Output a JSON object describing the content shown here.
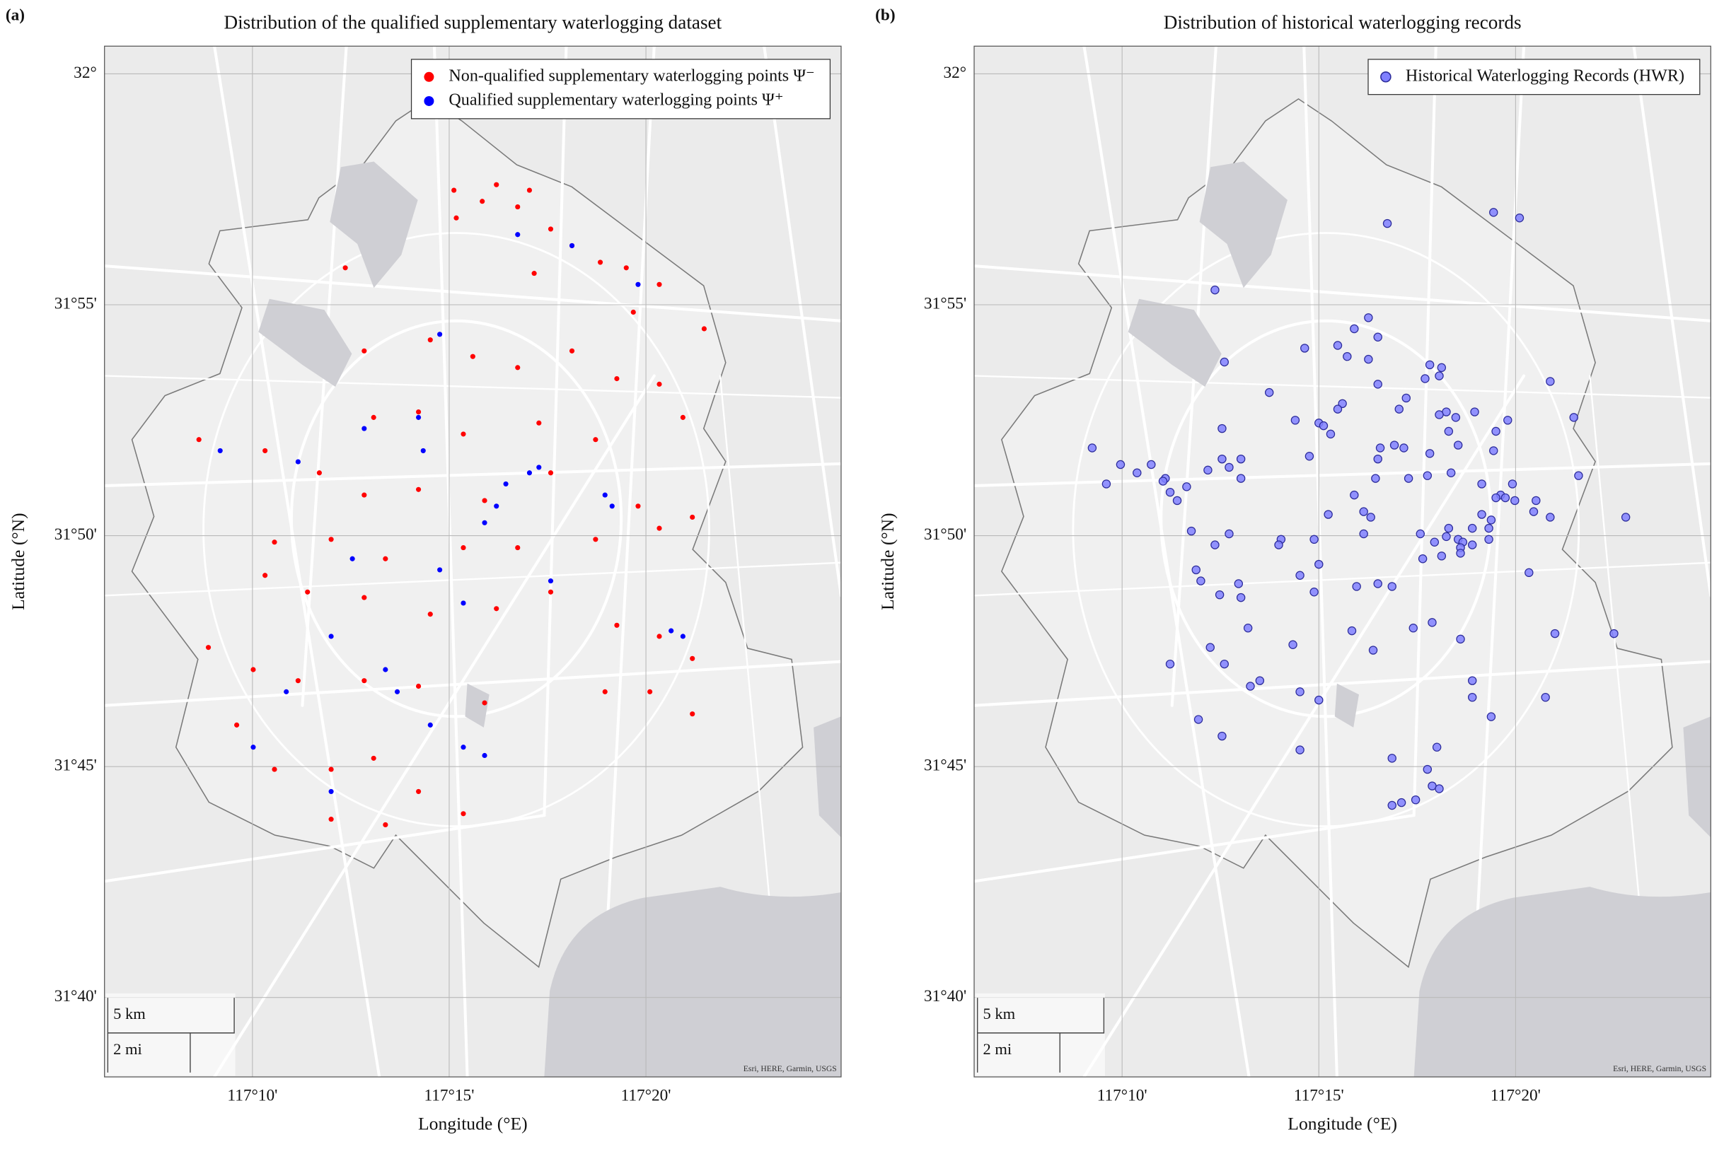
{
  "chart_data": [
    {
      "type": "scatter",
      "panel_label": "(a)",
      "title": "Distribution of the qualified supplementary waterlogging dataset",
      "xlabel": "Longitude (°E)",
      "ylabel": "Latitude (°N)",
      "xlim": [
        117.104,
        117.416
      ],
      "ylim": [
        31.638,
        32.01
      ],
      "xticks": [
        {
          "value": 117.16667,
          "label": "117°10'"
        },
        {
          "value": 117.25,
          "label": "117°15'"
        },
        {
          "value": 117.33333,
          "label": "117°20'"
        }
      ],
      "yticks": [
        {
          "value": 31.66667,
          "label": "31°40'"
        },
        {
          "value": 31.75,
          "label": "31°45'"
        },
        {
          "value": 31.83333,
          "label": "31°50'"
        },
        {
          "value": 31.91667,
          "label": "31°55'"
        },
        {
          "value": 32,
          "label": "32°"
        }
      ],
      "grid": true,
      "legend": "upper right",
      "scale_bar": [
        "5 km",
        "2 mi"
      ],
      "attribution": "Esri, HERE, Garmin, USGS",
      "series": [
        {
          "name": "Non-qualified supplementary waterlogging points Ψ⁻",
          "color": "#ff0000",
          "x": [
            117.27,
            117.252,
            117.264,
            117.279,
            117.284,
            117.253,
            117.293,
            117.302,
            117.314,
            117.325,
            117.206,
            117.286,
            117.339,
            117.328,
            117.358,
            117.214,
            117.242,
            117.26,
            117.279,
            117.302,
            117.321,
            117.339,
            117.349,
            117.218,
            117.237,
            117.256,
            117.288,
            117.312,
            117.144,
            117.172,
            117.195,
            117.214,
            117.237,
            117.265,
            117.293,
            117.33,
            117.353,
            117.176,
            117.2,
            117.223,
            117.256,
            117.279,
            117.312,
            117.339,
            117.172,
            117.19,
            117.214,
            117.242,
            117.27,
            117.293,
            117.321,
            117.339,
            117.353,
            117.148,
            117.167,
            117.186,
            117.214,
            117.237,
            117.265,
            117.316,
            117.335,
            117.353,
            117.16,
            117.176,
            117.2,
            117.218,
            117.237,
            117.256,
            117.2,
            117.223
          ],
          "y": [
            31.96,
            31.958,
            31.954,
            31.952,
            31.958,
            31.948,
            31.944,
            31.938,
            31.932,
            31.93,
            31.93,
            31.928,
            31.924,
            31.914,
            31.908,
            31.9,
            31.904,
            31.898,
            31.894,
            31.9,
            31.89,
            31.888,
            31.876,
            31.876,
            31.878,
            31.87,
            31.874,
            31.868,
            31.868,
            31.864,
            31.856,
            31.848,
            31.85,
            31.846,
            31.856,
            31.844,
            31.84,
            31.831,
            31.832,
            31.825,
            31.829,
            31.829,
            31.832,
            31.836,
            31.819,
            31.813,
            31.811,
            31.805,
            31.807,
            31.813,
            31.801,
            31.797,
            31.789,
            31.793,
            31.785,
            31.781,
            31.781,
            31.779,
            31.773,
            31.777,
            31.777,
            31.769,
            31.765,
            31.749,
            31.749,
            31.753,
            31.741,
            31.733,
            31.731,
            31.729
          ]
        },
        {
          "name": "Qualified supplementary waterlogging points Ψ⁺",
          "color": "#0000ff",
          "x": [
            117.274,
            117.284,
            117.288,
            117.27,
            117.265,
            117.237,
            117.239,
            117.209,
            117.246,
            117.223,
            117.228,
            117.242,
            117.256,
            117.265,
            117.2,
            117.181,
            117.186,
            117.153,
            117.316,
            117.319,
            117.33,
            117.302,
            117.279,
            117.349,
            117.344,
            117.214,
            117.246,
            117.293,
            117.256,
            117.2,
            117.167
          ],
          "y": [
            31.852,
            31.856,
            31.858,
            31.844,
            31.838,
            31.876,
            31.864,
            31.825,
            31.821,
            31.785,
            31.777,
            31.765,
            31.757,
            31.754,
            31.741,
            31.777,
            31.86,
            31.864,
            31.848,
            31.844,
            31.924,
            31.938,
            31.942,
            31.797,
            31.799,
            31.872,
            31.906,
            31.817,
            31.809,
            31.797,
            31.757
          ]
        }
      ]
    },
    {
      "type": "scatter",
      "panel_label": "(b)",
      "title": "Distribution of historical waterlogging records",
      "xlabel": "Longitude (°E)",
      "ylabel": "Latitude (°N)",
      "xlim": [
        117.104,
        117.416
      ],
      "ylim": [
        31.638,
        32.01
      ],
      "xticks": [
        {
          "value": 117.16667,
          "label": "117°10'"
        },
        {
          "value": 117.25,
          "label": "117°15'"
        },
        {
          "value": 117.33333,
          "label": "117°20'"
        }
      ],
      "yticks": [
        {
          "value": 31.66667,
          "label": "31°40'"
        },
        {
          "value": 31.75,
          "label": "31°45'"
        },
        {
          "value": 31.83333,
          "label": "31°50'"
        },
        {
          "value": 31.91667,
          "label": "31°55'"
        },
        {
          "value": 32,
          "label": "32°"
        }
      ],
      "grid": true,
      "legend": "upper right",
      "scale_bar": [
        "5 km",
        "2 mi"
      ],
      "attribution": "Esri, HERE, Garmin, USGS",
      "series": [
        {
          "name": "Historical Waterlogging Records (HWR)",
          "color": "#8080ff",
          "edgecolor": "#2b2b9a",
          "x": [
            117.279,
            117.324,
            117.335,
            117.206,
            117.271,
            117.265,
            117.258,
            117.275,
            117.262,
            117.244,
            117.21,
            117.271,
            117.297,
            117.302,
            117.295,
            117.301,
            117.275,
            117.348,
            117.229,
            117.287,
            117.26,
            117.258,
            117.284,
            117.304,
            117.301,
            117.316,
            117.308,
            117.33,
            117.358,
            117.24,
            117.25,
            117.252,
            117.209,
            117.255,
            117.325,
            117.305,
            117.154,
            117.276,
            117.282,
            117.286,
            117.297,
            117.309,
            117.246,
            117.217,
            117.209,
            117.324,
            117.166,
            117.179,
            117.173,
            117.203,
            117.212,
            117.185,
            117.16,
            117.275,
            117.274,
            117.288,
            117.296,
            117.306,
            117.217,
            117.36,
            117.184,
            117.194,
            117.187,
            117.19,
            117.265,
            117.319,
            117.332,
            117.327,
            117.329,
            117.333,
            117.342,
            117.325,
            117.254,
            117.269,
            117.319,
            117.341,
            117.348,
            117.38,
            117.323,
            117.315,
            117.305,
            117.293,
            117.299,
            117.304,
            117.309,
            117.311,
            117.31,
            117.322,
            117.322,
            117.315,
            117.31,
            117.196,
            117.212,
            117.234,
            117.233,
            117.272,
            117.269,
            117.248,
            117.206,
            117.302,
            117.294,
            117.198,
            117.2,
            117.25,
            117.242,
            117.248,
            117.216,
            117.217,
            117.208,
            117.266,
            117.275,
            117.281,
            117.339,
            117.29,
            117.298,
            117.264,
            117.22,
            117.239,
            117.204,
            117.273,
            117.31,
            117.35,
            117.375,
            117.187,
            117.21,
            117.315,
            117.315,
            117.346,
            117.242,
            117.225,
            117.221,
            117.25,
            117.199,
            117.323,
            117.209,
            117.3,
            117.281,
            117.242,
            117.296,
            117.298,
            117.301,
            117.291,
            117.285,
            117.281
          ],
          "y": [
            31.946,
            31.95,
            31.948,
            31.922,
            31.912,
            31.908,
            31.902,
            31.905,
            31.898,
            31.901,
            31.896,
            31.897,
            31.895,
            31.894,
            31.89,
            31.891,
            31.888,
            31.889,
            31.885,
            31.883,
            31.881,
            31.879,
            31.879,
            31.878,
            31.877,
            31.878,
            31.876,
            31.875,
            31.876,
            31.875,
            31.874,
            31.873,
            31.872,
            31.87,
            31.871,
            31.871,
            31.865,
            31.865,
            31.866,
            31.865,
            31.863,
            31.866,
            31.862,
            31.861,
            31.861,
            31.864,
            31.859,
            31.859,
            31.856,
            31.857,
            31.858,
            31.854,
            31.852,
            31.861,
            31.854,
            31.854,
            31.855,
            31.856,
            31.854,
            31.855,
            31.853,
            31.851,
            31.849,
            31.846,
            31.848,
            31.852,
            31.852,
            31.848,
            31.847,
            31.846,
            31.846,
            31.847,
            31.841,
            31.842,
            31.841,
            31.842,
            31.84,
            31.84,
            31.839,
            31.836,
            31.836,
            31.834,
            31.831,
            31.833,
            31.832,
            31.831,
            31.829,
            31.836,
            31.832,
            31.83,
            31.827,
            31.835,
            31.834,
            31.832,
            31.83,
            31.84,
            31.834,
            31.832,
            31.83,
            31.826,
            31.825,
            31.821,
            31.817,
            31.823,
            31.819,
            31.813,
            31.816,
            31.811,
            31.812,
            31.815,
            31.816,
            31.815,
            31.82,
            31.8,
            31.802,
            31.799,
            31.8,
            31.794,
            31.793,
            31.792,
            31.796,
            31.798,
            31.798,
            31.787,
            31.787,
            31.781,
            31.775,
            31.775,
            31.777,
            31.781,
            31.779,
            31.774,
            31.767,
            31.768,
            31.761,
            31.757,
            31.753,
            31.756,
            31.749,
            31.743,
            31.742,
            31.738,
            31.737,
            31.736
          ]
        }
      ]
    }
  ]
}
